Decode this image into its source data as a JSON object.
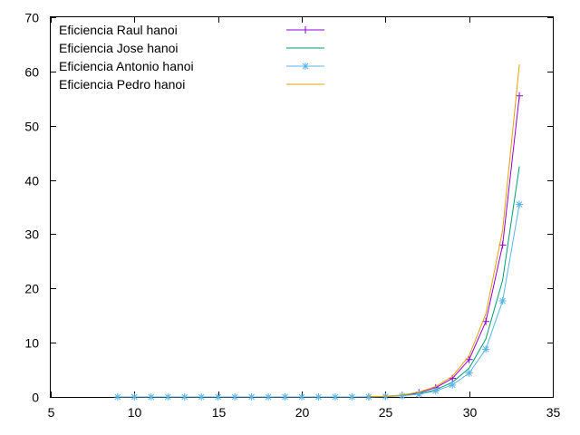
{
  "chart_data": {
    "type": "line",
    "title": "",
    "xlabel": "",
    "ylabel": "",
    "xlim": [
      5,
      35
    ],
    "ylim": [
      0,
      70
    ],
    "xticks": [
      5,
      10,
      15,
      20,
      25,
      30,
      35
    ],
    "yticks": [
      0,
      10,
      20,
      30,
      40,
      50,
      60,
      70
    ],
    "xtick_labels": [
      "5",
      "10",
      "15",
      "20",
      "25",
      "30",
      "35"
    ],
    "ytick_labels": [
      "0",
      "10",
      "20",
      "30",
      "40",
      "50",
      "60",
      "70"
    ],
    "grid": false,
    "legend_position": "top-left",
    "series": [
      {
        "name": "Eficiencia Raul hanoi",
        "color": "#9400d3",
        "marker": "plus",
        "x": [
          24,
          25,
          26,
          27,
          28,
          29,
          30,
          31,
          32,
          33
        ],
        "y": [
          0.03,
          0.1,
          0.3,
          0.8,
          1.7,
          3.4,
          6.9,
          13.9,
          28.0,
          55.5
        ]
      },
      {
        "name": "Eficiencia Jose hanoi",
        "color": "#009e73",
        "marker": "none",
        "x": [
          24,
          25,
          26,
          27,
          28,
          29,
          30,
          31,
          32,
          33
        ],
        "y": [
          0.02,
          0.08,
          0.25,
          0.6,
          1.3,
          2.7,
          5.3,
          10.7,
          21.5,
          42.5
        ]
      },
      {
        "name": "Eficiencia Antonio hanoi",
        "color": "#56b4e9",
        "marker": "star",
        "x": [
          9,
          10,
          11,
          12,
          13,
          14,
          15,
          16,
          17,
          18,
          19,
          20,
          21,
          22,
          23,
          24,
          25,
          26,
          27,
          28,
          29,
          30,
          31,
          32,
          33
        ],
        "y": [
          0,
          0,
          0,
          0,
          0,
          0,
          0,
          0,
          0,
          0,
          0,
          0,
          0,
          0,
          0,
          0.02,
          0.07,
          0.2,
          0.5,
          1.1,
          2.2,
          4.4,
          8.8,
          17.7,
          35.5
        ]
      },
      {
        "name": "Eficiencia Pedro hanoi",
        "color": "#e69f00",
        "marker": "none",
        "x": [
          24,
          25,
          26,
          27,
          28,
          29,
          30,
          31,
          32,
          33
        ],
        "y": [
          0.03,
          0.12,
          0.35,
          0.9,
          1.9,
          3.8,
          7.6,
          15.3,
          30.7,
          61.3
        ]
      }
    ]
  }
}
